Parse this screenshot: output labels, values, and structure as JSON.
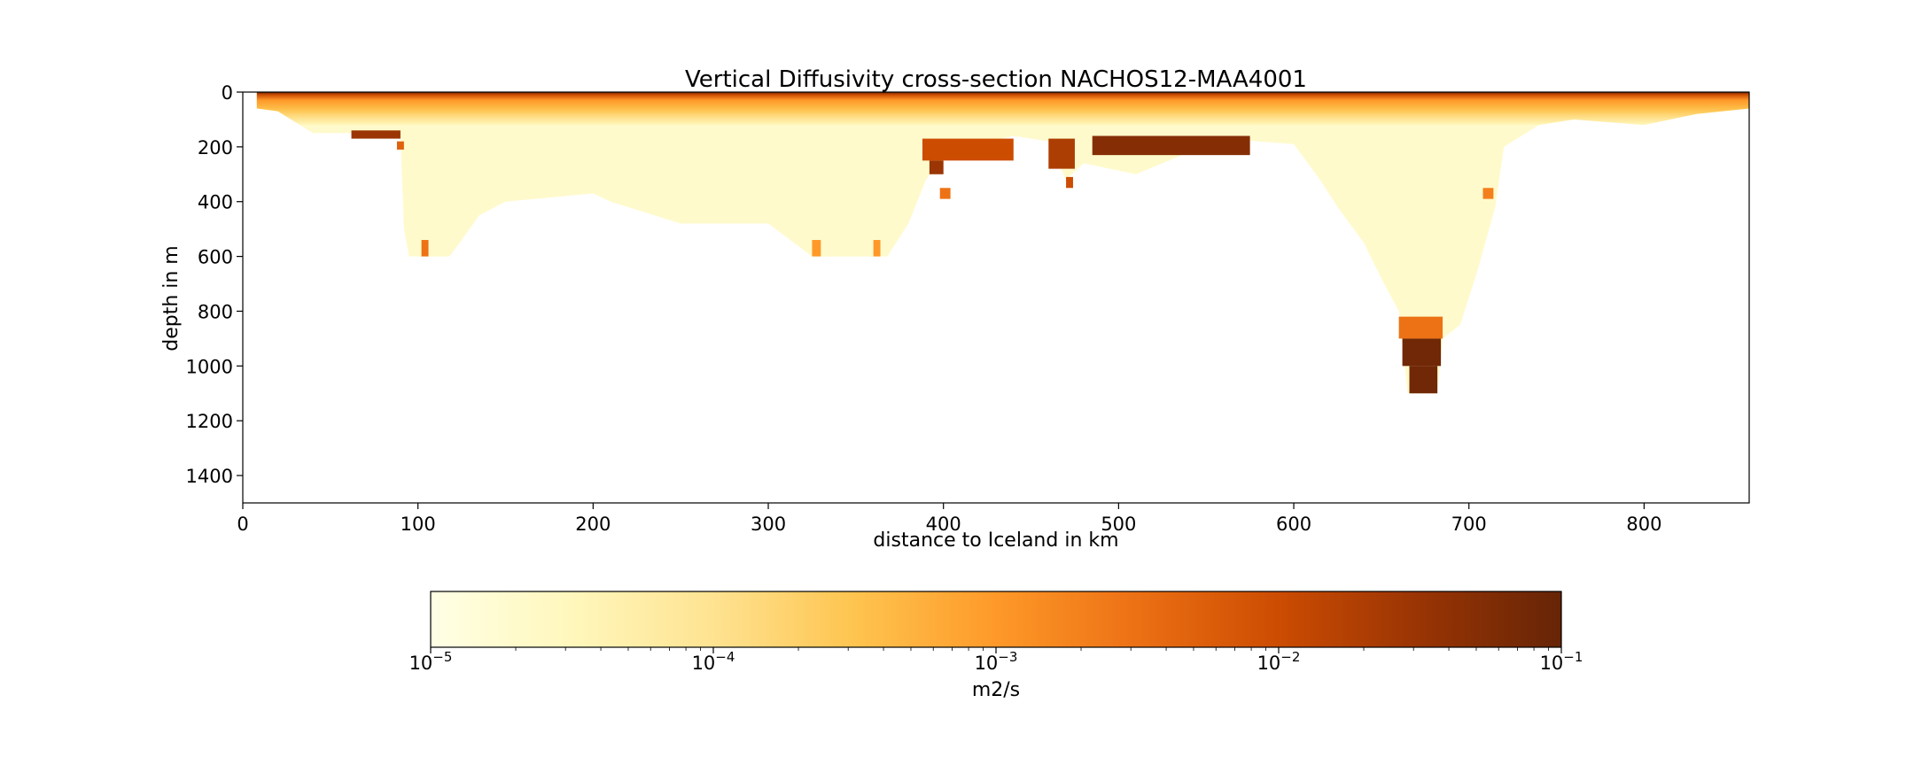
{
  "chart_data": {
    "type": "heatmap",
    "title": "Vertical Diffusivity cross-section NACHOS12-MAA4001",
    "xlabel": "distance to Iceland in km",
    "ylabel": "depth in m",
    "xlim": [
      0,
      860
    ],
    "ylim": [
      1500,
      0
    ],
    "y_inverted": true,
    "xticks": [
      0,
      100,
      200,
      300,
      400,
      500,
      600,
      700,
      800
    ],
    "yticks": [
      0,
      200,
      400,
      600,
      800,
      1000,
      1200,
      1400
    ],
    "colorbar": {
      "label": "m2/s",
      "scale": "log",
      "range": [
        1e-05,
        0.1
      ],
      "colormap": "YlOrBr",
      "ticks": [
        {
          "base": "10",
          "exp": "−5"
        },
        {
          "base": "10",
          "exp": "−4"
        },
        {
          "base": "10",
          "exp": "−3"
        },
        {
          "base": "10",
          "exp": "−2"
        },
        {
          "base": "10",
          "exp": "−1"
        }
      ]
    },
    "bottom_depth_profile": [
      {
        "x": 8,
        "depth": 60
      },
      {
        "x": 20,
        "depth": 70
      },
      {
        "x": 30,
        "depth": 110
      },
      {
        "x": 40,
        "depth": 150
      },
      {
        "x": 70,
        "depth": 150
      },
      {
        "x": 90,
        "depth": 160
      },
      {
        "x": 92,
        "depth": 500
      },
      {
        "x": 95,
        "depth": 600
      },
      {
        "x": 118,
        "depth": 600
      },
      {
        "x": 125,
        "depth": 540
      },
      {
        "x": 135,
        "depth": 450
      },
      {
        "x": 150,
        "depth": 400
      },
      {
        "x": 200,
        "depth": 370
      },
      {
        "x": 210,
        "depth": 400
      },
      {
        "x": 250,
        "depth": 480
      },
      {
        "x": 300,
        "depth": 480
      },
      {
        "x": 325,
        "depth": 600
      },
      {
        "x": 368,
        "depth": 600
      },
      {
        "x": 380,
        "depth": 480
      },
      {
        "x": 390,
        "depth": 320
      },
      {
        "x": 400,
        "depth": 240
      },
      {
        "x": 420,
        "depth": 190
      },
      {
        "x": 440,
        "depth": 160
      },
      {
        "x": 460,
        "depth": 180
      },
      {
        "x": 470,
        "depth": 320
      },
      {
        "x": 480,
        "depth": 260
      },
      {
        "x": 510,
        "depth": 300
      },
      {
        "x": 540,
        "depth": 220
      },
      {
        "x": 560,
        "depth": 170
      },
      {
        "x": 600,
        "depth": 190
      },
      {
        "x": 615,
        "depth": 320
      },
      {
        "x": 625,
        "depth": 420
      },
      {
        "x": 640,
        "depth": 550
      },
      {
        "x": 650,
        "depth": 680
      },
      {
        "x": 660,
        "depth": 800
      },
      {
        "x": 665,
        "depth": 1100
      },
      {
        "x": 682,
        "depth": 1100
      },
      {
        "x": 685,
        "depth": 900
      },
      {
        "x": 695,
        "depth": 850
      },
      {
        "x": 705,
        "depth": 650
      },
      {
        "x": 715,
        "depth": 420
      },
      {
        "x": 720,
        "depth": 200
      },
      {
        "x": 740,
        "depth": 120
      },
      {
        "x": 760,
        "depth": 100
      },
      {
        "x": 800,
        "depth": 120
      },
      {
        "x": 830,
        "depth": 80
      },
      {
        "x": 860,
        "depth": 60
      }
    ],
    "surface_mixing_layer": {
      "depth_dark": 10,
      "depth_orange": 120,
      "value_surface": 0.05,
      "value_mixed": 0.001
    },
    "deep_interior_value": 2e-05,
    "high_mixing_patches": [
      {
        "x": [
          62,
          90
        ],
        "depth": [
          140,
          170
        ],
        "value": 0.03
      },
      {
        "x": [
          88,
          92
        ],
        "depth": [
          180,
          210
        ],
        "value": 0.005
      },
      {
        "x": [
          102,
          106
        ],
        "depth": [
          540,
          600
        ],
        "value": 0.003
      },
      {
        "x": [
          325,
          330
        ],
        "depth": [
          540,
          600
        ],
        "value": 0.001
      },
      {
        "x": [
          360,
          364
        ],
        "depth": [
          540,
          600
        ],
        "value": 0.001
      },
      {
        "x": [
          388,
          440
        ],
        "depth": [
          170,
          250
        ],
        "value": 0.01
      },
      {
        "x": [
          392,
          400
        ],
        "depth": [
          250,
          300
        ],
        "value": 0.03
      },
      {
        "x": [
          398,
          404
        ],
        "depth": [
          350,
          390
        ],
        "value": 0.003
      },
      {
        "x": [
          460,
          475
        ],
        "depth": [
          170,
          280
        ],
        "value": 0.02
      },
      {
        "x": [
          470,
          474
        ],
        "depth": [
          310,
          350
        ],
        "value": 0.01
      },
      {
        "x": [
          485,
          575
        ],
        "depth": [
          160,
          230
        ],
        "value": 0.05
      },
      {
        "x": [
          660,
          685
        ],
        "depth": [
          820,
          900
        ],
        "value": 0.003
      },
      {
        "x": [
          662,
          684
        ],
        "depth": [
          900,
          1000
        ],
        "value": 0.08
      },
      {
        "x": [
          666,
          682
        ],
        "depth": [
          1000,
          1100
        ],
        "value": 0.08
      },
      {
        "x": [
          708,
          714
        ],
        "depth": [
          350,
          390
        ],
        "value": 0.002
      }
    ]
  }
}
